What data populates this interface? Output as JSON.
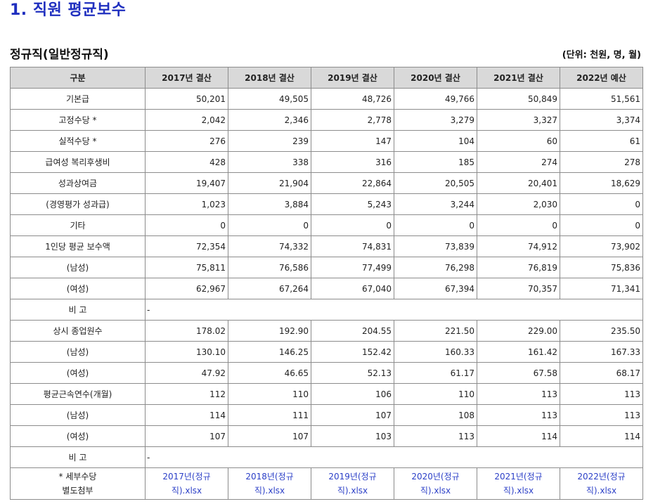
{
  "page_title": "1. 직원 평균보수",
  "section_title": "정규직(일반정규직)",
  "unit_note": "(단위: 천원, 명, 월)",
  "table": {
    "corner_header": "구분",
    "columns": [
      "2017년 결산",
      "2018년 결산",
      "2019년 결산",
      "2020년 결산",
      "2021년 결산",
      "2022년 예산"
    ],
    "rows_block1": [
      {
        "label": "기본급",
        "values": [
          "50,201",
          "49,505",
          "48,726",
          "49,766",
          "50,849",
          "51,561"
        ]
      },
      {
        "label": "고정수당 *",
        "values": [
          "2,042",
          "2,346",
          "2,778",
          "3,279",
          "3,327",
          "3,374"
        ]
      },
      {
        "label": "실적수당 *",
        "values": [
          "276",
          "239",
          "147",
          "104",
          "60",
          "61"
        ]
      },
      {
        "label": "급여성 복리후생비",
        "values": [
          "428",
          "338",
          "316",
          "185",
          "274",
          "278"
        ]
      },
      {
        "label": "성과상여금",
        "values": [
          "19,407",
          "21,904",
          "22,864",
          "20,505",
          "20,401",
          "18,629"
        ]
      },
      {
        "label": "(경영평가 성과급)",
        "values": [
          "1,023",
          "3,884",
          "5,243",
          "3,244",
          "2,030",
          "0"
        ]
      },
      {
        "label": "기타",
        "values": [
          "0",
          "0",
          "0",
          "0",
          "0",
          "0"
        ]
      },
      {
        "label": "1인당 평균 보수액",
        "values": [
          "72,354",
          "74,332",
          "74,831",
          "73,839",
          "74,912",
          "73,902"
        ]
      },
      {
        "label": "(남성)",
        "values": [
          "75,811",
          "76,586",
          "77,499",
          "76,298",
          "76,819",
          "75,836"
        ]
      },
      {
        "label": "(여성)",
        "values": [
          "62,967",
          "67,264",
          "67,040",
          "67,394",
          "70,357",
          "71,341"
        ]
      }
    ],
    "remark1": {
      "label": "비 고",
      "value": "-"
    },
    "rows_block2": [
      {
        "label": "상시 종업원수",
        "values": [
          "178.02",
          "192.90",
          "204.55",
          "221.50",
          "229.00",
          "235.50"
        ]
      },
      {
        "label": "(남성)",
        "values": [
          "130.10",
          "146.25",
          "152.42",
          "160.33",
          "161.42",
          "167.33"
        ]
      },
      {
        "label": "(여성)",
        "values": [
          "47.92",
          "46.65",
          "52.13",
          "61.17",
          "67.58",
          "68.17"
        ]
      },
      {
        "label": "평균근속연수(개월)",
        "values": [
          "112",
          "110",
          "106",
          "110",
          "113",
          "113"
        ]
      },
      {
        "label": "(남성)",
        "values": [
          "114",
          "111",
          "107",
          "108",
          "113",
          "113"
        ]
      },
      {
        "label": "(여성)",
        "values": [
          "107",
          "107",
          "103",
          "113",
          "114",
          "114"
        ]
      }
    ],
    "remark2": {
      "label": "비 고",
      "value": "-"
    },
    "attachments": {
      "label_line1": "* 세부수당",
      "label_line2": "별도첨부",
      "files": [
        {
          "line1": "2017년(정규",
          "line2": "직).xlsx"
        },
        {
          "line1": "2018년(정규",
          "line2": "직).xlsx"
        },
        {
          "line1": "2019년(정규",
          "line2": "직).xlsx"
        },
        {
          "line1": "2020년(정규",
          "line2": "직).xlsx"
        },
        {
          "line1": "2021년(정규",
          "line2": "직).xlsx"
        },
        {
          "line1": "2022년(정규",
          "line2": "직).xlsx"
        }
      ]
    }
  },
  "colors": {
    "title": "#1f2fbf",
    "header_bg": "#d9d9d9",
    "link": "#2b3fc7",
    "border": "#8c8c8c"
  }
}
